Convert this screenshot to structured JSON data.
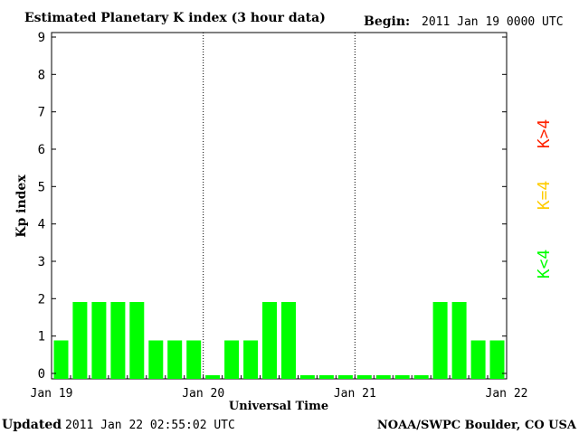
{
  "header": {
    "title": "Estimated Planetary K index (3 hour data)",
    "begin_label": "Begin:",
    "begin_value": "2011 Jan 19 0000 UTC"
  },
  "footer": {
    "updated_label": "Updated",
    "updated_value": "2011 Jan 22 02:55:02 UTC",
    "source": "NOAA/SWPC Boulder, CO USA"
  },
  "legend": {
    "low": "K<4",
    "mid": "K=4",
    "high": "K>4"
  },
  "colors": {
    "low": "#00ff00",
    "mid": "#ffcc00",
    "high": "#ff2200"
  },
  "chart_data": {
    "type": "bar",
    "title": "Estimated Planetary K index (3 hour data)",
    "xlabel": "Universal Time",
    "ylabel": "Kp index",
    "ylim": [
      0,
      9
    ],
    "y_ticks": [
      "0",
      "1",
      "2",
      "3",
      "4",
      "5",
      "6",
      "7",
      "8",
      "9"
    ],
    "x_ticks": [
      "Jan 19",
      "Jan 20",
      "Jan 21",
      "Jan 22"
    ],
    "day_separators": [
      "Jan 20",
      "Jan 21"
    ],
    "bins_per_day": 8,
    "values": [
      1,
      2,
      2,
      2,
      2,
      1,
      1,
      1,
      0,
      1,
      1,
      2,
      2,
      0,
      0,
      0,
      0,
      0,
      0,
      0,
      2,
      2,
      1,
      1
    ],
    "grid": false
  }
}
